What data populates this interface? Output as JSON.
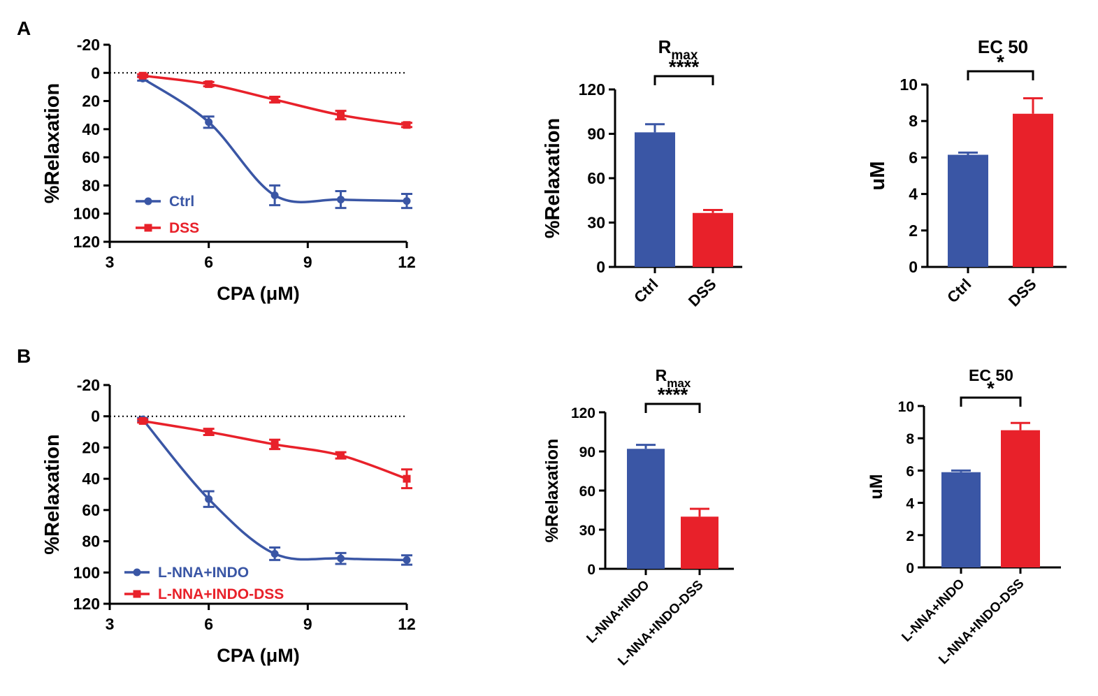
{
  "colors": {
    "ctrl": "#3a56a5",
    "dss": "#e8212a",
    "axis": "#000000"
  },
  "panels": [
    {
      "label": "A"
    },
    {
      "label": "B"
    }
  ],
  "chart_data": [
    {
      "id": "A-curve",
      "panel": "A",
      "type": "line",
      "title": "",
      "xlabel": "CPA (μM)",
      "ylabel": "%Relaxation",
      "xlim": [
        3,
        12
      ],
      "ylim": [
        -20,
        120
      ],
      "y_inverted": true,
      "xticks": [
        "3",
        "6",
        "9",
        "12"
      ],
      "yticks": [
        "-20",
        "0",
        "20",
        "40",
        "60",
        "80",
        "100",
        "120"
      ],
      "reference_line": 0,
      "legend_position": "bottom-left",
      "x": [
        4,
        6,
        8,
        10,
        12
      ],
      "series": [
        {
          "name": "Ctrl",
          "color": "#3a56a5",
          "marker": "circle",
          "values": [
            4,
            35,
            87,
            90,
            91
          ],
          "errors": [
            1.5,
            4,
            7,
            6,
            5
          ]
        },
        {
          "name": "DSS",
          "color": "#e8212a",
          "marker": "square",
          "values": [
            2,
            8,
            19,
            30,
            37
          ],
          "errors": [
            1,
            1.5,
            2,
            3,
            1.5
          ]
        }
      ]
    },
    {
      "id": "A-rmax",
      "panel": "A",
      "type": "bar",
      "title": "R",
      "title_sub": "max",
      "ylabel": "%Relaxation",
      "ylim": [
        0,
        120
      ],
      "yticks": [
        "0",
        "30",
        "60",
        "90",
        "120"
      ],
      "categories": [
        "Ctrl",
        "DSS"
      ],
      "values": [
        91,
        36.5
      ],
      "errors": [
        5.5,
        2
      ],
      "colors": [
        "#3a56a5",
        "#e8212a"
      ],
      "significance": "****"
    },
    {
      "id": "A-ec50",
      "panel": "A",
      "type": "bar",
      "title": "EC 50",
      "ylabel": "uM",
      "ylim": [
        0,
        10
      ],
      "yticks": [
        "0",
        "2",
        "4",
        "6",
        "8",
        "10"
      ],
      "categories": [
        "Ctrl",
        "DSS"
      ],
      "values": [
        6.15,
        8.4
      ],
      "errors": [
        0.12,
        0.85
      ],
      "colors": [
        "#3a56a5",
        "#e8212a"
      ],
      "significance": "*"
    },
    {
      "id": "B-curve",
      "panel": "B",
      "type": "line",
      "title": "",
      "xlabel": "CPA (μM)",
      "ylabel": "%Relaxation",
      "xlim": [
        3,
        12
      ],
      "ylim": [
        -20,
        120
      ],
      "y_inverted": true,
      "xticks": [
        "3",
        "6",
        "9",
        "12"
      ],
      "yticks": [
        "-20",
        "0",
        "20",
        "40",
        "60",
        "80",
        "100",
        "120"
      ],
      "reference_line": 0,
      "legend_position": "bottom-left",
      "x": [
        4,
        6,
        8,
        10,
        12
      ],
      "series": [
        {
          "name": "L-NNA+INDO",
          "color": "#3a56a5",
          "marker": "circle",
          "values": [
            2,
            53,
            88,
            91,
            92
          ],
          "errors": [
            1,
            5,
            4,
            3.5,
            3
          ]
        },
        {
          "name": "L-NNA+INDO-DSS",
          "color": "#e8212a",
          "marker": "square",
          "values": [
            3,
            10,
            18,
            25,
            40
          ],
          "errors": [
            1,
            2,
            3,
            2,
            6
          ]
        }
      ]
    },
    {
      "id": "B-rmax",
      "panel": "B",
      "type": "bar",
      "title": "R",
      "title_sub": "max",
      "ylabel": "%Relaxation",
      "ylim": [
        0,
        120
      ],
      "yticks": [
        "0",
        "30",
        "60",
        "90",
        "120"
      ],
      "categories": [
        "L-NNA+INDO",
        "L-NNA+INDO-DSS"
      ],
      "values": [
        92,
        40
      ],
      "errors": [
        3,
        6
      ],
      "colors": [
        "#3a56a5",
        "#e8212a"
      ],
      "significance": "****"
    },
    {
      "id": "B-ec50",
      "panel": "B",
      "type": "bar",
      "title": "EC 50",
      "ylabel": "uM",
      "ylim": [
        0,
        10
      ],
      "yticks": [
        "0",
        "2",
        "4",
        "6",
        "8",
        "10"
      ],
      "categories": [
        "L-NNA+INDO",
        "L-NNA+INDO-DSS"
      ],
      "values": [
        5.9,
        8.5
      ],
      "errors": [
        0.1,
        0.45
      ],
      "colors": [
        "#3a56a5",
        "#e8212a"
      ],
      "significance": "*"
    }
  ]
}
